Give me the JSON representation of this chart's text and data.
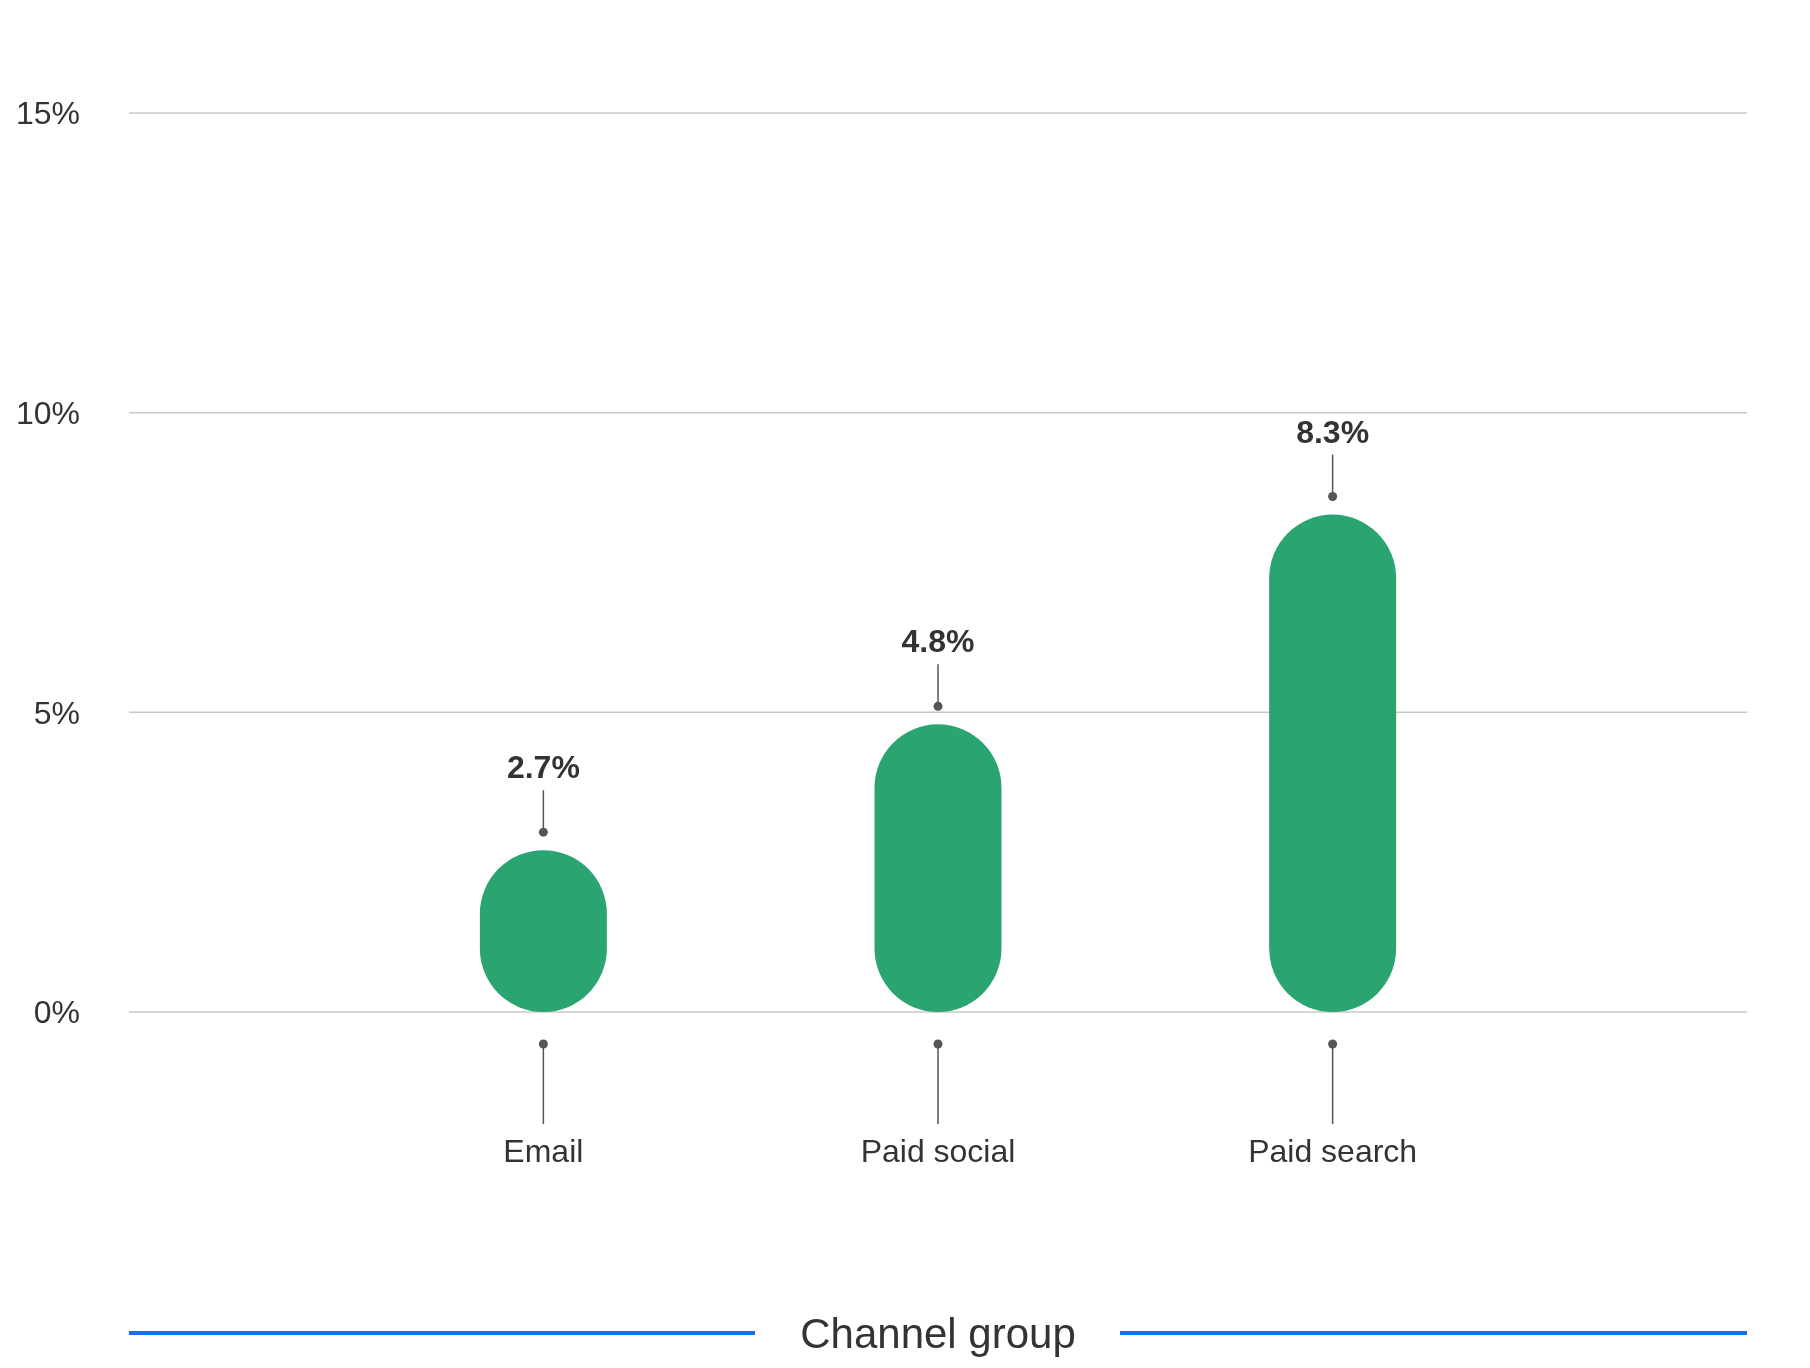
{
  "chart_data": {
    "type": "bar",
    "xlabel": "Channel group",
    "categories": [
      "Email",
      "Paid social",
      "Paid search"
    ],
    "values": [
      2.7,
      4.8,
      8.3
    ],
    "color": "#2aa572",
    "ylim": [
      0,
      15
    ],
    "yticks": [
      {
        "value": 0,
        "label": "0%"
      },
      {
        "value": 5,
        "label": "5%"
      },
      {
        "value": 10,
        "label": "10%"
      },
      {
        "value": 15,
        "label": "15%"
      }
    ],
    "grid": "y",
    "value_labels": [
      "2.7%",
      "4.8%",
      "8.3%"
    ]
  }
}
